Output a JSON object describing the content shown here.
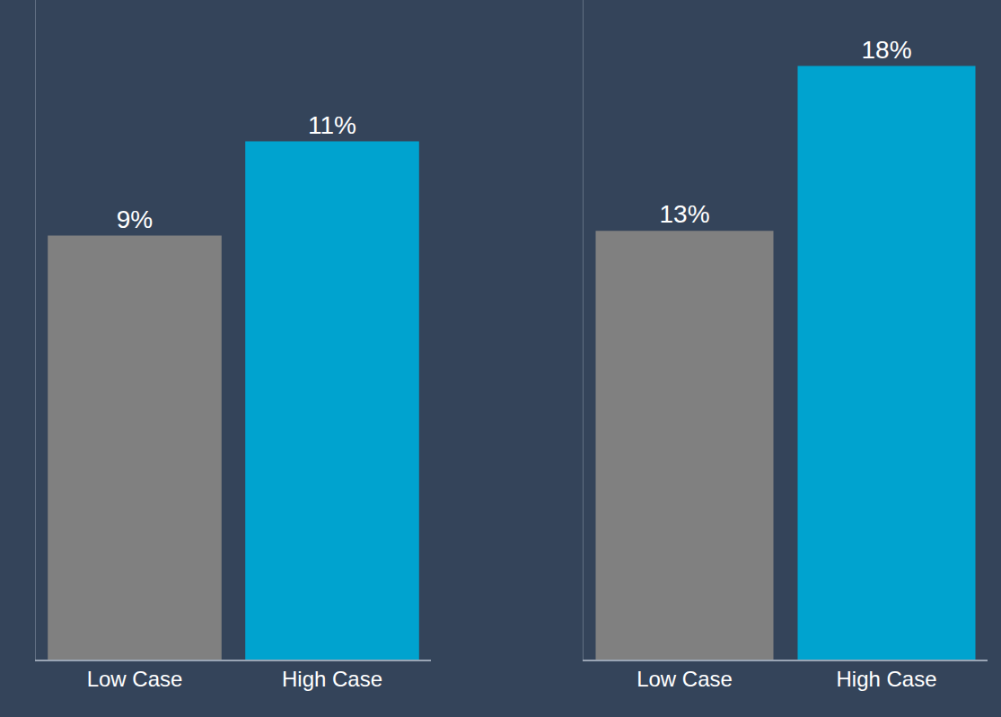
{
  "chart_data": [
    {
      "type": "bar",
      "categories": [
        "Low Case",
        "High Case"
      ],
      "values": [
        9,
        11
      ],
      "value_labels": [
        "9%",
        "11%"
      ],
      "colors": [
        "#808080",
        "#00a3cf"
      ],
      "ylim": [
        0,
        14
      ],
      "data_labels": true,
      "tick_labels": "x",
      "grid": false
    },
    {
      "type": "bar",
      "categories": [
        "Low Case",
        "High Case"
      ],
      "values": [
        13,
        18
      ],
      "value_labels": [
        "13%",
        "18%"
      ],
      "colors": [
        "#808080",
        "#00a3cf"
      ],
      "ylim": [
        0,
        20
      ],
      "data_labels": true,
      "tick_labels": "x",
      "grid": false
    }
  ]
}
